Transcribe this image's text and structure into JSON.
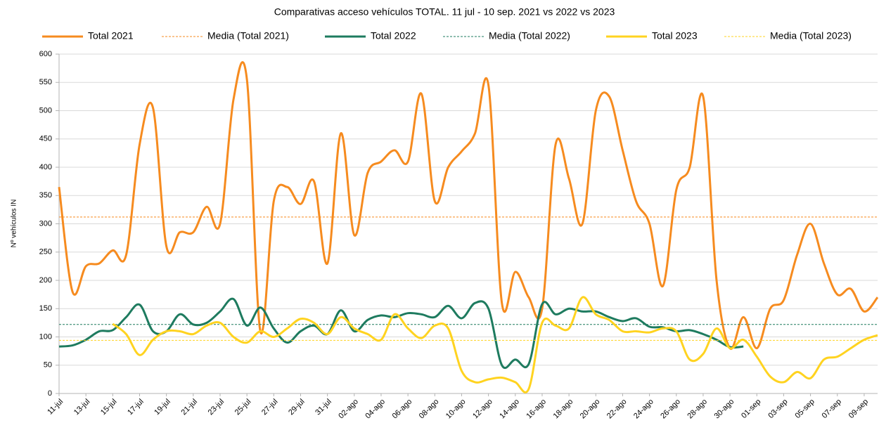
{
  "chart_data": {
    "type": "line",
    "title": "Comparativas acceso vehículos TOTAL. 11 jul - 10 sep. 2021 vs 2022 vs 2023",
    "y_label": "Nº vehículos IN",
    "categories": [
      "11-jul",
      null,
      "13-jul",
      null,
      "15-jul",
      null,
      "17-jul",
      null,
      "19-jul",
      null,
      "21-jul",
      null,
      "23-jul",
      null,
      "25-jul",
      null,
      "27-jul",
      null,
      "29-jul",
      null,
      "31-jul",
      null,
      "02-ago",
      null,
      "04-ago",
      null,
      "06-ago",
      null,
      "08-ago",
      null,
      "10-ago",
      null,
      "12-ago",
      null,
      "14-ago",
      null,
      "16-ago",
      null,
      "18-ago",
      null,
      "20-ago",
      null,
      "22-ago",
      null,
      "24-ago",
      null,
      "26-ago",
      null,
      "28-ago",
      null,
      "30-ago",
      null,
      "01-sep",
      null,
      "03-sep",
      null,
      "05-sep",
      null,
      "07-sep",
      null,
      "09-sep",
      null
    ],
    "series": [
      {
        "name": "Total 2021",
        "color": "#f68b1f",
        "values": [
          365,
          180,
          225,
          230,
          253,
          245,
          440,
          505,
          260,
          285,
          285,
          330,
          300,
          520,
          555,
          110,
          340,
          365,
          335,
          375,
          230,
          460,
          280,
          390,
          410,
          430,
          410,
          530,
          340,
          400,
          428,
          460,
          545,
          160,
          215,
          170,
          150,
          440,
          380,
          300,
          500,
          525,
          430,
          340,
          300,
          190,
          360,
          400,
          525,
          200,
          80,
          135,
          80,
          150,
          165,
          245,
          300,
          230,
          175,
          185,
          145,
          170
        ]
      },
      {
        "name": "Media (Total 2021)",
        "color": "#f68b1f",
        "dashed": true,
        "value": 312
      },
      {
        "name": "Total 2022",
        "color": "#1e7b5f",
        "values": [
          83,
          85,
          95,
          110,
          112,
          135,
          157,
          110,
          110,
          140,
          122,
          125,
          145,
          167,
          120,
          152,
          115,
          90,
          110,
          120,
          105,
          147,
          110,
          130,
          138,
          135,
          142,
          140,
          135,
          155,
          133,
          160,
          150,
          50,
          60,
          52,
          158,
          140,
          150,
          145,
          145,
          135,
          128,
          133,
          118,
          117,
          110,
          112,
          105,
          95,
          82,
          83,
          null,
          null,
          null,
          null,
          null,
          null,
          null,
          null,
          null,
          null
        ]
      },
      {
        "name": "Media (Total 2022)",
        "color": "#1e7b5f",
        "dashed": true,
        "value": 122
      },
      {
        "name": "Total 2023",
        "color": "#ffd320",
        "values": [
          null,
          null,
          null,
          null,
          123,
          105,
          68,
          95,
          110,
          110,
          105,
          120,
          125,
          100,
          90,
          110,
          100,
          115,
          132,
          125,
          105,
          135,
          115,
          105,
          95,
          140,
          115,
          98,
          120,
          115,
          40,
          20,
          25,
          28,
          20,
          8,
          125,
          120,
          115,
          170,
          140,
          130,
          110,
          110,
          108,
          115,
          110,
          60,
          70,
          115,
          80,
          95,
          65,
          30,
          20,
          38,
          27,
          60,
          65,
          80,
          95,
          103
        ]
      },
      {
        "name": "Media (Total 2023)",
        "color": "#ffd320",
        "dashed": true,
        "value": 94
      }
    ],
    "ylim": [
      0,
      600
    ],
    "yticks": [
      0,
      50,
      100,
      150,
      200,
      250,
      300,
      350,
      400,
      450,
      500,
      550,
      600
    ],
    "grid": true,
    "legend": "top"
  }
}
